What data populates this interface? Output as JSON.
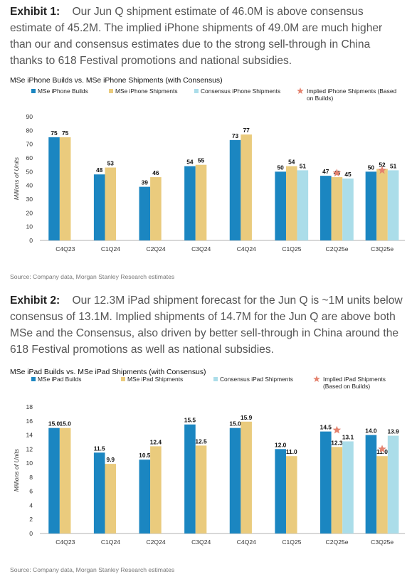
{
  "exhibits": [
    {
      "label": "Exhibit 1:",
      "text": "Our Jun Q shipment estimate of 46.0M is above consensus estimate of 45.2M. The implied iPhone shipments of 49.0M are much higher than our and consensus estimates due to the strong sell-through in China thanks to 618 Festival promotions and national subsidies.",
      "source": "Source: Company data, Morgan Stanley Research estimates"
    },
    {
      "label": "Exhibit 2:",
      "text": "Our 12.3M iPad shipment forecast for the Jun Q is ~1M units below consensus of 13.1M. Implied shipments of 14.7M for the Jun Q are above both MSe and the Consensus, also driven by better sell-through in China around the 618 Festival promotions as well as national subsidies.",
      "source": "Source: Company data, Morgan Stanley Research estimates"
    }
  ],
  "colors": {
    "builds": "#1B86C1",
    "shipments": "#EACB7D",
    "consensus": "#ABDDE9",
    "implied": "#E4826E"
  },
  "chart_data": [
    {
      "type": "bar",
      "title": "MSe iPhone Builds vs. MSe iPhone Shipments (with Consensus)",
      "ylabel": "Millions of Units",
      "ylim": [
        0,
        90
      ],
      "yticks": [
        0,
        10,
        20,
        30,
        40,
        50,
        60,
        70,
        80,
        90
      ],
      "grid": false,
      "legend_position": "top",
      "categories": [
        "C4Q23",
        "C1Q24",
        "C2Q24",
        "C3Q24",
        "C4Q24",
        "C1Q25",
        "C2Q25e",
        "C3Q25e"
      ],
      "series": [
        {
          "name": "MSe iPhone Builds",
          "values": [
            75,
            48,
            39,
            54,
            73,
            50,
            47,
            50
          ]
        },
        {
          "name": "MSe iPhone Shipments",
          "values": [
            75,
            53,
            46,
            55,
            77,
            54,
            46,
            52
          ]
        },
        {
          "name": "Consensus iPhone Shipments",
          "values": [
            null,
            null,
            null,
            null,
            null,
            51,
            45,
            51
          ]
        }
      ],
      "markers": {
        "name": "Implied iPhone Shipments (Based on Builds)",
        "values": [
          null,
          null,
          null,
          null,
          null,
          null,
          49,
          51
        ]
      },
      "value_labels": [
        [
          "75",
          "48",
          "39",
          "54",
          "73",
          "50",
          "47",
          "50"
        ],
        [
          "75",
          "53",
          "46",
          "55",
          "77",
          "54",
          "46",
          "52"
        ],
        [
          "",
          "",
          "",
          "",
          "",
          "51",
          "45",
          "51"
        ]
      ]
    },
    {
      "type": "bar",
      "title": "MSe iPad Builds vs. MSe iPad Shipments (with Consensus)",
      "ylabel": "Millions of Units",
      "ylim": [
        0,
        18
      ],
      "yticks": [
        0,
        2,
        4,
        6,
        8,
        10,
        12,
        14,
        16,
        18
      ],
      "grid": false,
      "legend_position": "top",
      "categories": [
        "C4Q23",
        "C1Q24",
        "C2Q24",
        "C3Q24",
        "C4Q24",
        "C1Q25",
        "C2Q25e",
        "C3Q25e"
      ],
      "series": [
        {
          "name": "MSe iPad Builds",
          "values": [
            15.0,
            11.5,
            10.5,
            15.5,
            15.0,
            12.0,
            14.5,
            14.0
          ]
        },
        {
          "name": "MSe iPad Shipments",
          "values": [
            15.0,
            9.9,
            12.4,
            12.5,
            15.9,
            11.0,
            12.3,
            11.0
          ]
        },
        {
          "name": "Consensus iPad Shipments",
          "values": [
            null,
            null,
            null,
            null,
            null,
            null,
            13.1,
            13.9
          ]
        }
      ],
      "markers": {
        "name": "Implied iPad Shipments (Based on Builds)",
        "values": [
          null,
          null,
          null,
          null,
          null,
          null,
          14.7,
          12.0
        ]
      },
      "value_labels": [
        [
          "15.0",
          "11.5",
          "10.5",
          "15.5",
          "15.0",
          "12.0",
          "14.5",
          "14.0"
        ],
        [
          "15.0",
          "9.9",
          "12.4",
          "12.5",
          "15.9",
          "11.0",
          "12.3",
          "11.0"
        ],
        [
          "",
          "",
          "",
          "",
          "",
          "",
          "13.1",
          "13.9"
        ]
      ]
    }
  ]
}
